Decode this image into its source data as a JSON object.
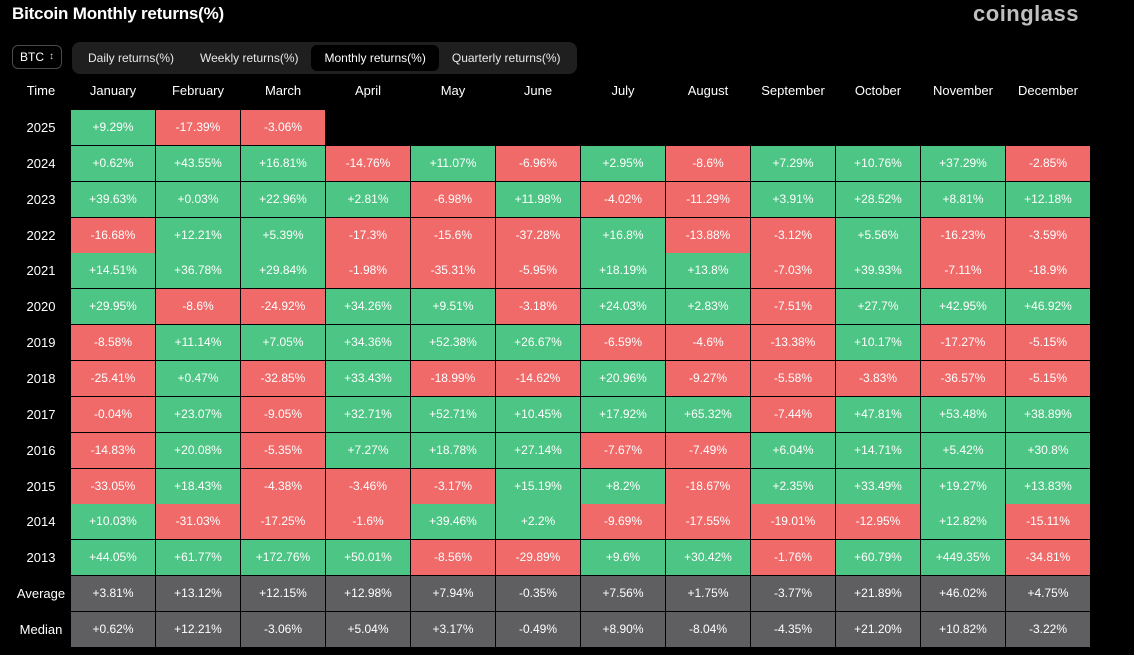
{
  "header": {
    "title": "Bitcoin Monthly returns(%)",
    "logo": "coinglass"
  },
  "controls": {
    "asset": "BTC",
    "asset_icon": "updown-chevron-icon",
    "tabs": [
      {
        "label": "Daily returns(%)",
        "active": false
      },
      {
        "label": "Weekly returns(%)",
        "active": false
      },
      {
        "label": "Monthly returns(%)",
        "active": true
      },
      {
        "label": "Quarterly returns(%)",
        "active": false
      }
    ]
  },
  "colors": {
    "positive": "#4dc584",
    "negative": "#f06a6a",
    "summary": "#5f5f62"
  },
  "chart_data": {
    "type": "table",
    "corner_label": "Time",
    "columns": [
      "January",
      "February",
      "March",
      "April",
      "May",
      "June",
      "July",
      "August",
      "September",
      "October",
      "November",
      "December"
    ],
    "rows": [
      {
        "year": "2025",
        "values": [
          "+9.29%",
          "-17.39%",
          "-3.06%",
          "",
          "",
          "",
          "",
          "",
          "",
          "",
          "",
          ""
        ]
      },
      {
        "year": "2024",
        "values": [
          "+0.62%",
          "+43.55%",
          "+16.81%",
          "-14.76%",
          "+11.07%",
          "-6.96%",
          "+2.95%",
          "-8.6%",
          "+7.29%",
          "+10.76%",
          "+37.29%",
          "-2.85%"
        ]
      },
      {
        "year": "2023",
        "values": [
          "+39.63%",
          "+0.03%",
          "+22.96%",
          "+2.81%",
          "-6.98%",
          "+11.98%",
          "-4.02%",
          "-11.29%",
          "+3.91%",
          "+28.52%",
          "+8.81%",
          "+12.18%"
        ]
      },
      {
        "year": "2022",
        "values": [
          "-16.68%",
          "+12.21%",
          "+5.39%",
          "-17.3%",
          "-15.6%",
          "-37.28%",
          "+16.8%",
          "-13.88%",
          "-3.12%",
          "+5.56%",
          "-16.23%",
          "-3.59%"
        ]
      },
      {
        "year": "2021",
        "values": [
          "+14.51%",
          "+36.78%",
          "+29.84%",
          "-1.98%",
          "-35.31%",
          "-5.95%",
          "+18.19%",
          "+13.8%",
          "-7.03%",
          "+39.93%",
          "-7.11%",
          "-18.9%"
        ]
      },
      {
        "year": "2020",
        "values": [
          "+29.95%",
          "-8.6%",
          "-24.92%",
          "+34.26%",
          "+9.51%",
          "-3.18%",
          "+24.03%",
          "+2.83%",
          "-7.51%",
          "+27.7%",
          "+42.95%",
          "+46.92%"
        ]
      },
      {
        "year": "2019",
        "values": [
          "-8.58%",
          "+11.14%",
          "+7.05%",
          "+34.36%",
          "+52.38%",
          "+26.67%",
          "-6.59%",
          "-4.6%",
          "-13.38%",
          "+10.17%",
          "-17.27%",
          "-5.15%"
        ]
      },
      {
        "year": "2018",
        "values": [
          "-25.41%",
          "+0.47%",
          "-32.85%",
          "+33.43%",
          "-18.99%",
          "-14.62%",
          "+20.96%",
          "-9.27%",
          "-5.58%",
          "-3.83%",
          "-36.57%",
          "-5.15%"
        ]
      },
      {
        "year": "2017",
        "values": [
          "-0.04%",
          "+23.07%",
          "-9.05%",
          "+32.71%",
          "+52.71%",
          "+10.45%",
          "+17.92%",
          "+65.32%",
          "-7.44%",
          "+47.81%",
          "+53.48%",
          "+38.89%"
        ]
      },
      {
        "year": "2016",
        "values": [
          "-14.83%",
          "+20.08%",
          "-5.35%",
          "+7.27%",
          "+18.78%",
          "+27.14%",
          "-7.67%",
          "-7.49%",
          "+6.04%",
          "+14.71%",
          "+5.42%",
          "+30.8%"
        ]
      },
      {
        "year": "2015",
        "values": [
          "-33.05%",
          "+18.43%",
          "-4.38%",
          "-3.46%",
          "-3.17%",
          "+15.19%",
          "+8.2%",
          "-18.67%",
          "+2.35%",
          "+33.49%",
          "+19.27%",
          "+13.83%"
        ]
      },
      {
        "year": "2014",
        "values": [
          "+10.03%",
          "-31.03%",
          "-17.25%",
          "-1.6%",
          "+39.46%",
          "+2.2%",
          "-9.69%",
          "-17.55%",
          "-19.01%",
          "-12.95%",
          "+12.82%",
          "-15.11%"
        ]
      },
      {
        "year": "2013",
        "values": [
          "+44.05%",
          "+61.77%",
          "+172.76%",
          "+50.01%",
          "-8.56%",
          "-29.89%",
          "+9.6%",
          "+30.42%",
          "-1.76%",
          "+60.79%",
          "+449.35%",
          "-34.81%"
        ]
      }
    ],
    "summary_rows": [
      {
        "label": "Average",
        "values": [
          "+3.81%",
          "+13.12%",
          "+12.15%",
          "+12.98%",
          "+7.94%",
          "-0.35%",
          "+7.56%",
          "+1.75%",
          "-3.77%",
          "+21.89%",
          "+46.02%",
          "+4.75%"
        ]
      },
      {
        "label": "Median",
        "values": [
          "+0.62%",
          "+12.21%",
          "-3.06%",
          "+5.04%",
          "+3.17%",
          "-0.49%",
          "+8.90%",
          "-8.04%",
          "-4.35%",
          "+21.20%",
          "+10.82%",
          "-3.22%"
        ]
      }
    ]
  }
}
